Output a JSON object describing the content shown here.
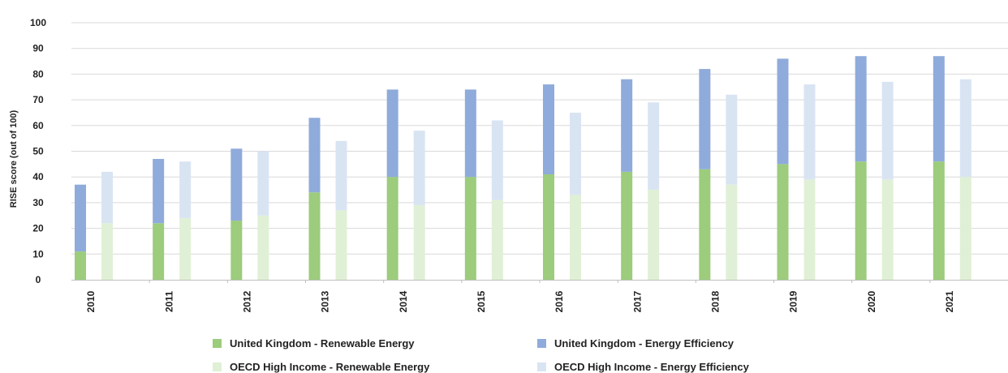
{
  "chart_data": {
    "type": "bar",
    "stacked": true,
    "ylabel": "RISE score (out of 100)",
    "ylim": [
      0,
      100
    ],
    "yticks": [
      0,
      10,
      20,
      30,
      40,
      50,
      60,
      70,
      80,
      90,
      100
    ],
    "grid": true,
    "legend_position": "bottom",
    "categories": [
      "2010",
      "2011",
      "2012",
      "2013",
      "2014",
      "2015",
      "2016",
      "2017",
      "2018",
      "2019",
      "2020",
      "2021"
    ],
    "groups": [
      {
        "name": "United Kingdom",
        "series": [
          {
            "name": "United Kingdom - Renewable Energy",
            "color": "#9ccc7c",
            "values": [
              11,
              22,
              23,
              34,
              40,
              40,
              41,
              42,
              43,
              45,
              46,
              46
            ]
          },
          {
            "name": "United Kingdom - Energy Efficiency",
            "color": "#8fabdb",
            "values": [
              26,
              25,
              28,
              29,
              34,
              34,
              35,
              36,
              39,
              41,
              41,
              41
            ]
          }
        ]
      },
      {
        "name": "OECD High Income",
        "series": [
          {
            "name": "OECD High Income - Renewable Energy",
            "color": "#e0f0d6",
            "values": [
              22,
              24,
              25,
              27,
              29,
              31,
              33,
              35,
              37,
              39,
              39,
              40
            ]
          },
          {
            "name": "OECD High Income - Energy Efficiency",
            "color": "#d9e4f3",
            "values": [
              20,
              22,
              25,
              27,
              29,
              31,
              32,
              34,
              35,
              37,
              38,
              38
            ]
          }
        ]
      }
    ]
  },
  "legend": [
    {
      "label": "United Kingdom - Renewable Energy",
      "color": "#9ccc7c"
    },
    {
      "label": "United Kingdom - Energy Efficiency",
      "color": "#8fabdb"
    },
    {
      "label": "OECD High Income - Renewable Energy",
      "color": "#e0f0d6"
    },
    {
      "label": "OECD High Income - Energy Efficiency",
      "color": "#d9e4f3"
    }
  ]
}
